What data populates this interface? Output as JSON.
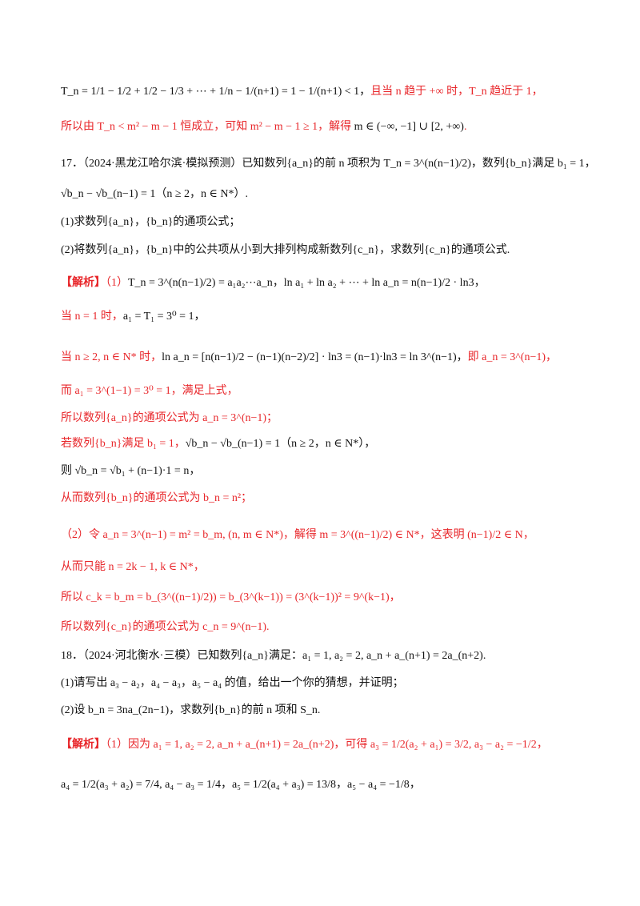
{
  "colors": {
    "accent": "#e8262a",
    "text": "#111111",
    "background": "#ffffff"
  },
  "lines": [
    {
      "id": "l1",
      "segments": [
        {
          "t": "T_n = 1/1 − 1/2 + 1/2 − 1/3 + ⋯ + 1/n − 1/(n+1) = 1 − 1/(n+1) < 1，",
          "c": "blk"
        },
        {
          "t": "且当 n 趋于 +∞ 时，T_n 趋近于 1，",
          "c": "red"
        }
      ]
    },
    {
      "id": "l2",
      "segments": [
        {
          "t": "所以由 T_n < m² − m − 1 恒成立，可知 m² − m − 1 ≥ 1，解得 ",
          "c": "red"
        },
        {
          "t": "m ∈ (−∞, −1] ∪ [2, +∞)",
          "c": "blk"
        },
        {
          "t": ".",
          "c": "red"
        }
      ]
    },
    {
      "id": "l3",
      "segments": [
        {
          "t": "17．（2024·黑龙江哈尔滨·模拟预测）已知数列{a_n}的前 n 项积为 T_n = 3^(n(n−1)/2)，数列{b_n}满足 b₁ = 1，",
          "c": "blk"
        }
      ]
    },
    {
      "id": "l4",
      "segments": [
        {
          "t": "√b_n − √b_(n−1) = 1（n ≥ 2，n ∈ N*）.",
          "c": "blk"
        }
      ]
    },
    {
      "id": "l5",
      "segments": [
        {
          "t": "(1)求数列{a_n}，{b_n}的通项公式；",
          "c": "blk"
        }
      ]
    },
    {
      "id": "l6",
      "segments": [
        {
          "t": "(2)将数列{a_n}，{b_n}中的公共项从小到大排列构成新数列{c_n}，求数列{c_n}的通项公式.",
          "c": "blk"
        }
      ]
    },
    {
      "id": "l7",
      "segments": [
        {
          "t": "【解析】",
          "c": "bracket"
        },
        {
          "t": "（1）",
          "c": "red"
        },
        {
          "t": "T_n = 3^(n(n−1)/2) = a₁a₂⋯a_n，ln a₁ + ln a₂ + ⋯ + ln a_n = n(n−1)/2 · ln3，",
          "c": "blk"
        }
      ]
    },
    {
      "id": "l8",
      "segments": [
        {
          "t": "当 n = 1 时，",
          "c": "red"
        },
        {
          "t": "a₁ = T₁ = 3⁰ = 1，",
          "c": "blk"
        }
      ]
    },
    {
      "id": "l9",
      "segments": [
        {
          "t": "当 n ≥ 2, n ∈ N* 时，",
          "c": "red"
        },
        {
          "t": "ln a_n = [n(n−1)/2 − (n−1)(n−2)/2] · ln3 = (n−1)·ln3 = ln 3^(n−1)，",
          "c": "blk"
        },
        {
          "t": "即 a_n = 3^(n−1)，",
          "c": "red"
        }
      ]
    },
    {
      "id": "l10",
      "segments": [
        {
          "t": "而 a₁ = 3^(1−1) = 3⁰ = 1，满足上式，",
          "c": "red"
        }
      ]
    },
    {
      "id": "l11",
      "segments": [
        {
          "t": "所以数列{a_n}的通项公式为 a_n = 3^(n−1)；",
          "c": "red"
        }
      ]
    },
    {
      "id": "l12",
      "segments": [
        {
          "t": "若数列{b_n}满足 b₁ = 1，",
          "c": "red"
        },
        {
          "t": "√b_n − √b_(n−1) = 1（n ≥ 2，n ∈ N*），",
          "c": "blk"
        }
      ]
    },
    {
      "id": "l13",
      "segments": [
        {
          "t": "则 √b_n = √b₁ + (n−1)·1 = n，",
          "c": "blk"
        }
      ]
    },
    {
      "id": "l14",
      "segments": [
        {
          "t": "从而数列{b_n}的通项公式为 b_n = n²；",
          "c": "red"
        }
      ]
    },
    {
      "id": "l15",
      "segments": [
        {
          "t": "（2）令 a_n = 3^(n−1) = m² = b_m, (n, m ∈ N*)，解得 m = 3^((n−1)/2) ∈ N*，这表明 (n−1)/2 ∈ N，",
          "c": "red"
        }
      ]
    },
    {
      "id": "l16",
      "segments": [
        {
          "t": "从而只能 n = 2k − 1, k ∈ N*，",
          "c": "red"
        }
      ]
    },
    {
      "id": "l17",
      "segments": [
        {
          "t": "所以 c_k = b_m = b_(3^((n−1)/2)) = b_(3^(k−1)) = (3^(k−1))² = 9^(k−1)，",
          "c": "red"
        }
      ]
    },
    {
      "id": "l18",
      "segments": [
        {
          "t": "所以数列{c_n}的通项公式为 c_n = 9^(n−1).",
          "c": "red"
        }
      ]
    },
    {
      "id": "l19",
      "segments": [
        {
          "t": "18．（2024·河北衡水·三模）已知数列{a_n}满足：a₁ = 1, a₂ = 2, a_n + a_(n+1) = 2a_(n+2).",
          "c": "blk"
        }
      ]
    },
    {
      "id": "l20",
      "segments": [
        {
          "t": "(1)请写出 a₃ − a₂，a₄ − a₃，a₅ − a₄ 的值，给出一个你的猜想，并证明；",
          "c": "blk"
        }
      ]
    },
    {
      "id": "l21",
      "segments": [
        {
          "t": "(2)设 b_n = 3na_(2n−1)，求数列{b_n}的前 n 项和 S_n.",
          "c": "blk"
        }
      ]
    },
    {
      "id": "l22",
      "segments": [
        {
          "t": "【解析】",
          "c": "bracket"
        },
        {
          "t": "（1）因为 a₁ = 1, a₂ = 2, a_n + a_(n+1) = 2a_(n+2)，可得 a₃ = 1/2(a₂ + a₁) = 3/2, a₃ − a₂ = −1/2，",
          "c": "red"
        }
      ]
    },
    {
      "id": "l23",
      "segments": [
        {
          "t": "a₄ = 1/2(a₃ + a₂) = 7/4, a₄ − a₃ = 1/4，a₅ = 1/2(a₄ + a₃) = 13/8，a₅ − a₄ = −1/8，",
          "c": "blk"
        }
      ]
    }
  ]
}
